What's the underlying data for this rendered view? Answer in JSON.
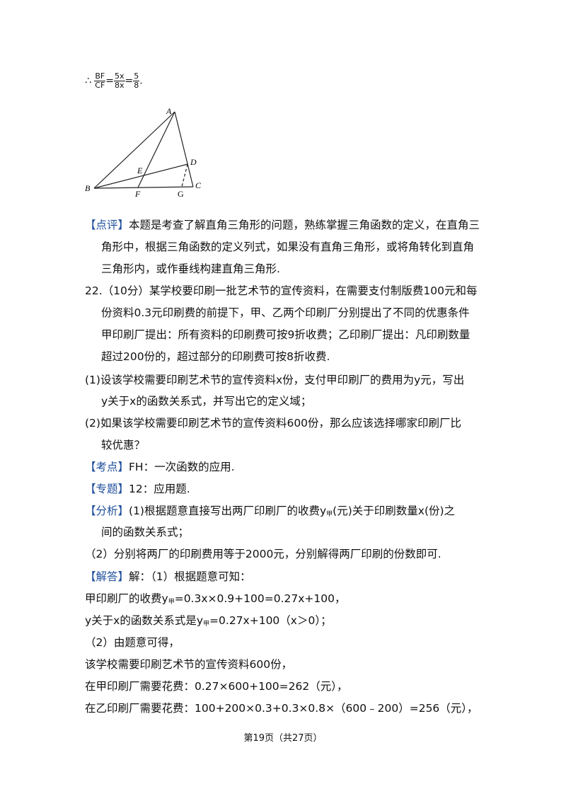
{
  "formula": {
    "therefore": "∴",
    "f1_num": "BF",
    "f1_den": "CF",
    "eq1": "=",
    "f2_num": "5x",
    "f2_den": "8x",
    "eq2": "=",
    "f3_num": "5",
    "f3_den": "8",
    "end": "."
  },
  "figure": {
    "labels": [
      "A",
      "B",
      "C",
      "D",
      "E",
      "F",
      "G"
    ]
  },
  "lines": [
    [
      "【点评】",
      "本题是考查了解直角三角形的问题，熟练掌握三角函数的定义，在直角三"
    ],
    [
      "角形中，根据三角函数的定义列式，如果没有直角三角形，或将角转化到直角"
    ],
    [
      "三角形内，或作垂线构建直角三角形."
    ],
    [
      "22.（10分）某学校要印刷一批艺术节的宣传资料，在需要支付制版费100元和每"
    ],
    [
      "份资料0.3元印刷费的前提下，甲、乙两个印刷厂分别提出了不同的优惠条件"
    ],
    [
      "甲印刷厂提出：所有资料的印刷费可按9折收费；乙印刷厂提出：凡印刷数量"
    ],
    [
      "超过200份的，超过部分的印刷费可按8折收费."
    ],
    [
      "(1)设该学校需要印刷艺术节的宣传资料x份，支付甲印刷厂的费用为y元，写出"
    ],
    [
      "y关于x的函数关系式，并写出它的定义域；"
    ],
    [
      "(2)如果该学校需要印刷艺术节的宣传资料600份，那么应该选择哪家印刷厂比"
    ],
    [
      "较优惠？"
    ],
    [
      "【考点】",
      "FH：一次函数的应用."
    ],
    [
      "【专题】",
      "12：应用题."
    ],
    [
      "【分析】",
      "(1)根据题意直接写出两厂印刷厂的收费y",
      "甲",
      "(元)关于印刷数量x(份)之"
    ],
    [
      "间的函数关系式；"
    ],
    [
      "（2）分别将两厂的印刷费用等于2000元，分别解得两厂印刷的份数即可."
    ],
    [
      "【解答】",
      "解：（1）根据题意可知："
    ],
    [
      "甲印刷厂的收费y",
      "甲",
      "=0.3x×0.9+100=0.27x+100，"
    ],
    [
      "y关于x的函数关系式是y",
      "甲",
      "=0.27x+100（x＞0）；"
    ],
    [
      "（2）由题意可得，"
    ],
    [
      "该学校需要印刷艺术节的宣传资料600份，"
    ],
    [
      "在甲印刷厂需要花费：0.27×600+100=262（元），"
    ],
    [
      "在乙印刷厂需要花费：100+200×0.3+0.3×0.8×（600﹣200）=256（元），"
    ]
  ],
  "footer": "第19页（共27页）"
}
